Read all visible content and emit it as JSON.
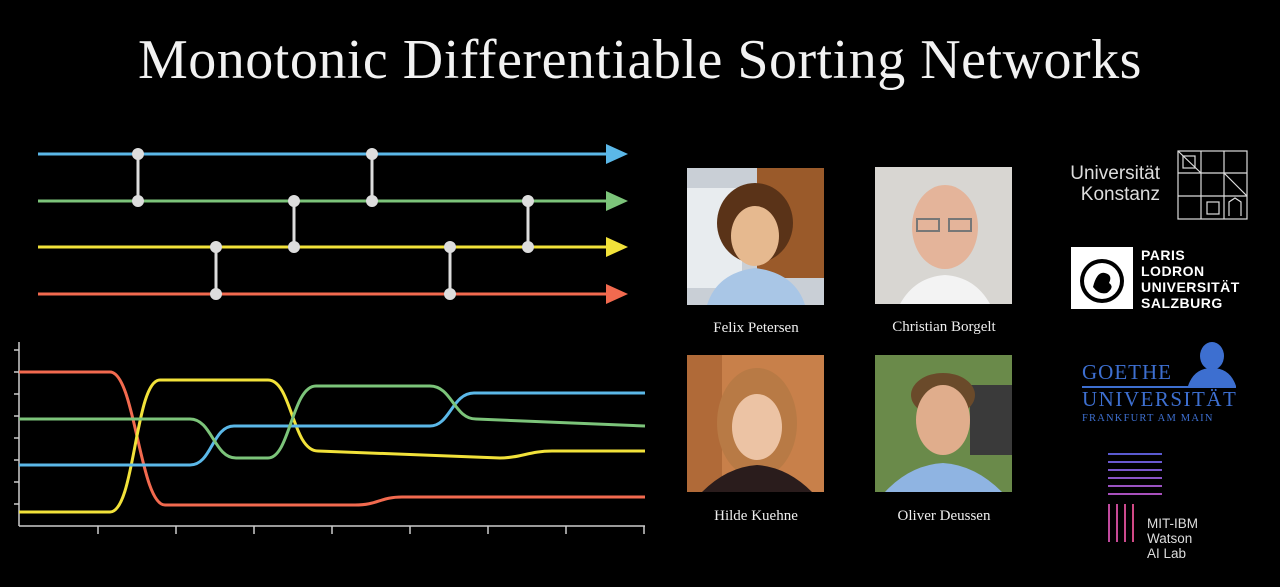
{
  "title": "Monotonic Differentiable Sorting Networks",
  "wire_colors": [
    "#5bb8e8",
    "#7cc47a",
    "#f2e23a",
    "#f26a4f"
  ],
  "comparator_color": "#dddddd",
  "authors": [
    {
      "name": "Felix Petersen"
    },
    {
      "name": "Christian Borgelt"
    },
    {
      "name": "Hilde Kuehne"
    },
    {
      "name": "Oliver Deussen"
    }
  ],
  "logos": {
    "konstanz": {
      "line1": "Universität",
      "line2": "Konstanz"
    },
    "salzburg": {
      "line1": "PARIS",
      "line2": "LODRON",
      "line3": "UNIVERSITÄT",
      "line4": "SALZBURG"
    },
    "goethe": {
      "line1": "GOETHE",
      "line2": "UNIVERSITÄT",
      "line3": "FRANKFURT AM MAIN"
    },
    "mit_ibm": {
      "line1": "MIT-IBM",
      "line2": "Watson",
      "line3": "AI Lab"
    }
  }
}
